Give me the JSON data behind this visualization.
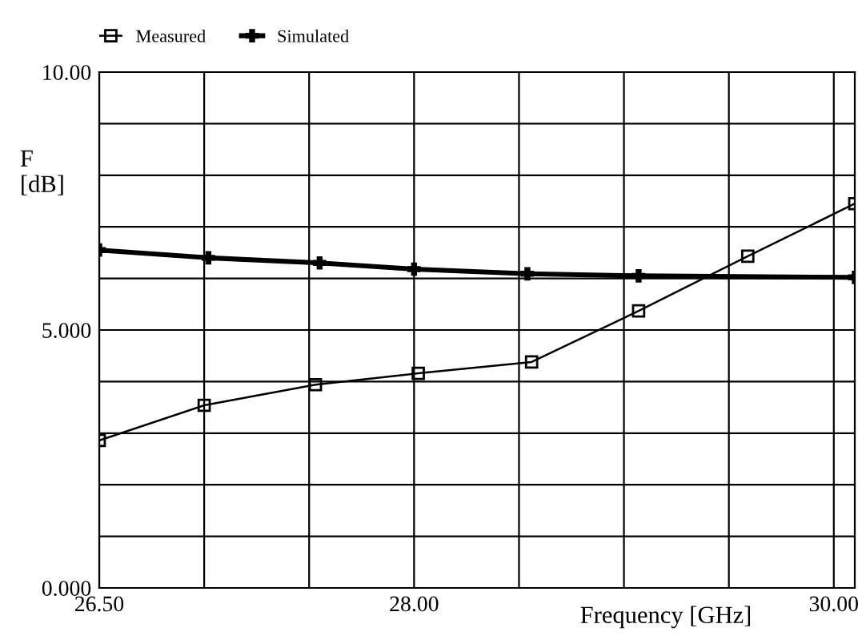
{
  "chart_data": {
    "type": "line",
    "xlabel": "Frequency [GHz]",
    "ylabel": "F\n[dB]",
    "xlim": [
      26.5,
      30.1
    ],
    "ylim": [
      0,
      10
    ],
    "xticks": [
      {
        "value": 26.5,
        "label": "26.50"
      },
      {
        "value": 27,
        "label": null
      },
      {
        "value": 27.5,
        "label": null
      },
      {
        "value": 28,
        "label": "28.00"
      },
      {
        "value": 28.5,
        "label": null
      },
      {
        "value": 29,
        "label": null
      },
      {
        "value": 29.5,
        "label": null
      },
      {
        "value": 30,
        "label": "30.00"
      }
    ],
    "yticks": [
      {
        "value": 0,
        "label": "0.000"
      },
      {
        "value": 1,
        "label": null
      },
      {
        "value": 2,
        "label": null
      },
      {
        "value": 3,
        "label": null
      },
      {
        "value": 4,
        "label": null
      },
      {
        "value": 5,
        "label": "5.000"
      },
      {
        "value": 6,
        "label": null
      },
      {
        "value": 7,
        "label": null
      },
      {
        "value": 8,
        "label": null
      },
      {
        "value": 9,
        "label": null
      },
      {
        "value": 10,
        "label": "10.00"
      }
    ],
    "grid": true,
    "legend": "top left",
    "series": [
      {
        "name": "Measured",
        "color": "#000000",
        "marker": "square",
        "x": [
          26.5,
          27.0,
          27.53,
          28.02,
          28.56,
          29.07,
          29.59,
          30.1
        ],
        "values": [
          2.86,
          3.54,
          3.94,
          4.16,
          4.38,
          5.37,
          6.43,
          7.45
        ]
      },
      {
        "name": "Simulated",
        "color": "#000000",
        "marker": "cross",
        "x": [
          26.5,
          27.02,
          27.55,
          28.0,
          28.54,
          29.07,
          30.1
        ],
        "values": [
          6.55,
          6.4,
          6.3,
          6.18,
          6.09,
          6.05,
          6.02
        ]
      }
    ]
  }
}
